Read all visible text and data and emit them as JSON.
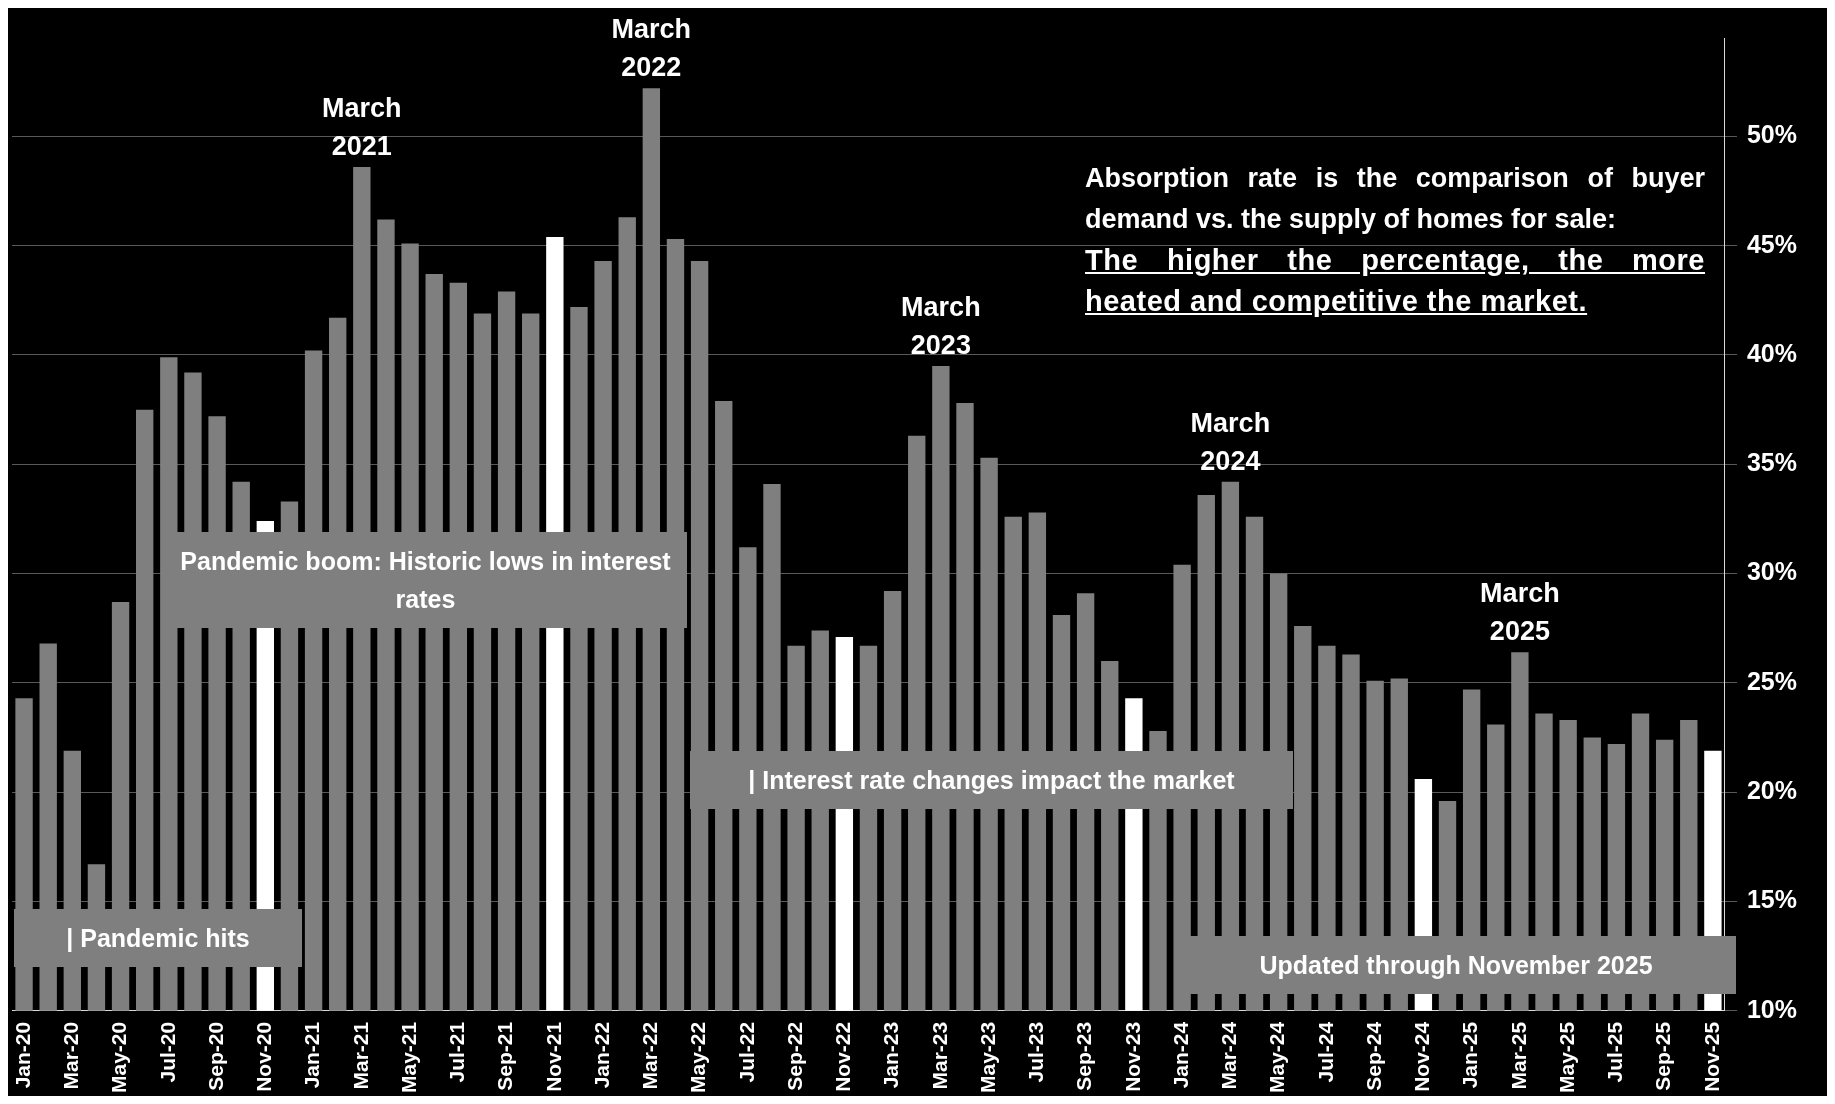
{
  "chart_data": {
    "type": "bar",
    "categories": [
      "Jan-20",
      null,
      "Mar-20",
      null,
      "May-20",
      null,
      "Jul-20",
      null,
      "Sep-20",
      null,
      "Nov-20",
      null,
      "Jan-21",
      null,
      "Mar-21",
      null,
      "May-21",
      null,
      "Jul-21",
      null,
      "Sep-21",
      null,
      "Nov-21",
      null,
      "Jan-22",
      null,
      "Mar-22",
      null,
      "May-22",
      null,
      "Jul-22",
      null,
      "Sep-22",
      null,
      "Nov-22",
      null,
      "Jan-23",
      null,
      "Mar-23",
      null,
      "May-23",
      null,
      "Jul-23",
      null,
      "Sep-23",
      null,
      "Nov-23",
      null,
      "Jan-24",
      null,
      "Mar-24",
      null,
      "May-24",
      null,
      "Jul-24",
      null,
      "Sep-24",
      null,
      "Nov-24",
      null,
      "Jan-25",
      null,
      "Mar-25",
      null,
      "May-25",
      null,
      "Jul-25",
      null,
      "Sep-25",
      null,
      "Nov-25"
    ],
    "values": [
      24.3,
      26.8,
      21.9,
      16.7,
      28.7,
      37.5,
      39.9,
      39.2,
      37.2,
      34.2,
      32.4,
      33.3,
      40.2,
      41.7,
      48.6,
      46.2,
      45.1,
      43.7,
      43.3,
      41.9,
      42.9,
      41.9,
      45.4,
      42.2,
      44.3,
      46.3,
      52.2,
      45.3,
      44.3,
      37.9,
      31.2,
      34.1,
      26.7,
      27.4,
      27.1,
      26.7,
      29.2,
      36.3,
      39.5,
      37.8,
      35.3,
      32.6,
      32.8,
      28.1,
      29.1,
      26.0,
      24.3,
      22.8,
      30.4,
      33.6,
      34.2,
      32.6,
      30.0,
      27.6,
      26.7,
      26.3,
      25.1,
      25.2,
      20.6,
      19.6,
      24.7,
      23.1,
      26.4,
      23.6,
      23.3,
      22.5,
      22.2,
      23.6,
      22.4,
      23.3,
      21.9
    ],
    "colors": [
      "#7f7f7f",
      "#7f7f7f",
      "#7f7f7f",
      "#7f7f7f",
      "#7f7f7f",
      "#7f7f7f",
      "#7f7f7f",
      "#7f7f7f",
      "#7f7f7f",
      "#7f7f7f",
      "#ffffff",
      "#7f7f7f",
      "#7f7f7f",
      "#7f7f7f",
      "#7f7f7f",
      "#7f7f7f",
      "#7f7f7f",
      "#7f7f7f",
      "#7f7f7f",
      "#7f7f7f",
      "#7f7f7f",
      "#7f7f7f",
      "#ffffff",
      "#7f7f7f",
      "#7f7f7f",
      "#7f7f7f",
      "#7f7f7f",
      "#7f7f7f",
      "#7f7f7f",
      "#7f7f7f",
      "#7f7f7f",
      "#7f7f7f",
      "#7f7f7f",
      "#7f7f7f",
      "#ffffff",
      "#7f7f7f",
      "#7f7f7f",
      "#7f7f7f",
      "#7f7f7f",
      "#7f7f7f",
      "#7f7f7f",
      "#7f7f7f",
      "#7f7f7f",
      "#7f7f7f",
      "#7f7f7f",
      "#7f7f7f",
      "#ffffff",
      "#7f7f7f",
      "#7f7f7f",
      "#7f7f7f",
      "#7f7f7f",
      "#7f7f7f",
      "#7f7f7f",
      "#7f7f7f",
      "#7f7f7f",
      "#7f7f7f",
      "#7f7f7f",
      "#7f7f7f",
      "#ffffff",
      "#7f7f7f",
      "#7f7f7f",
      "#7f7f7f",
      "#7f7f7f",
      "#7f7f7f",
      "#7f7f7f",
      "#7f7f7f",
      "#7f7f7f",
      "#7f7f7f",
      "#7f7f7f",
      "#7f7f7f",
      "#ffffff"
    ],
    "ylim": [
      10,
      54.5
    ],
    "yticks": [
      {
        "value": 10,
        "label": "10%"
      },
      {
        "value": 15,
        "label": "15%"
      },
      {
        "value": 20,
        "label": "20%"
      },
      {
        "value": 25,
        "label": "25%"
      },
      {
        "value": 30,
        "label": "30%"
      },
      {
        "value": 35,
        "label": "35%"
      },
      {
        "value": 40,
        "label": "40%"
      },
      {
        "value": 45,
        "label": "45%"
      },
      {
        "value": 50,
        "label": "50%"
      }
    ],
    "grid": "y",
    "legend": false,
    "annotations": [
      "Absorption rate is the comparison of buyer demand vs. the supply of homes for sale:",
      "The higher the percentage, the more heated and competitive the market.",
      "| Pandemic hits",
      "Pandemic boom: Historic lows in interest rates",
      "| Interest rate changes impact the market",
      "Updated through November 2025",
      {
        "text": "March 2021",
        "x": "Mar-21",
        "y": 48.6
      },
      {
        "text": "March 2022",
        "x": "Mar-22",
        "y": 52.2
      },
      {
        "text": "March 2023",
        "x": "Mar-23",
        "y": 39.5
      },
      {
        "text": "March 2024",
        "x": "Mar-24",
        "y": 34.2
      },
      {
        "text": "March 2025",
        "x": "Mar-25",
        "y": 26.4
      }
    ]
  }
}
